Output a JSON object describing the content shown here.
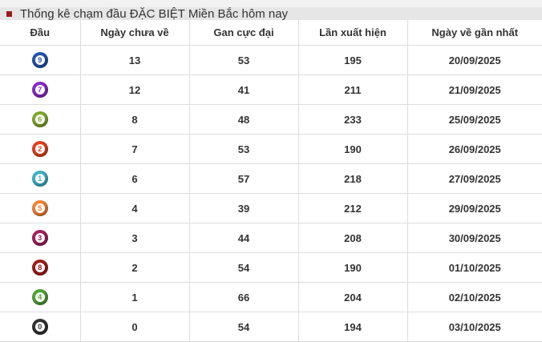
{
  "title": "Thống kê chạm đầu ĐẶC BIỆT Miền Bắc hôm nay",
  "headers": [
    "Đầu",
    "Ngày chưa về",
    "Gan cực đại",
    "Lần xuất hiện",
    "Ngày về gần nhất"
  ],
  "rows": [
    {
      "dau": "9",
      "color": "#2456a8",
      "ngay_chua_ve": "13",
      "gan_cuc_dai": "53",
      "lan_xuat_hien": "195",
      "ngay_ve_gan_nhat": "20/09/2025"
    },
    {
      "dau": "7",
      "color": "#8a2bc2",
      "ngay_chua_ve": "12",
      "gan_cuc_dai": "41",
      "lan_xuat_hien": "211",
      "ngay_ve_gan_nhat": "21/09/2025"
    },
    {
      "dau": "6",
      "color": "#7fa82c",
      "ngay_chua_ve": "8",
      "gan_cuc_dai": "48",
      "lan_xuat_hien": "233",
      "ngay_ve_gan_nhat": "25/09/2025"
    },
    {
      "dau": "2",
      "color": "#e2401f",
      "ngay_chua_ve": "7",
      "gan_cuc_dai": "53",
      "lan_xuat_hien": "190",
      "ngay_ve_gan_nhat": "26/09/2025"
    },
    {
      "dau": "1",
      "color": "#3fb2c4",
      "ngay_chua_ve": "6",
      "gan_cuc_dai": "57",
      "lan_xuat_hien": "218",
      "ngay_ve_gan_nhat": "27/09/2025"
    },
    {
      "dau": "5",
      "color": "#f28232",
      "ngay_chua_ve": "4",
      "gan_cuc_dai": "39",
      "lan_xuat_hien": "212",
      "ngay_ve_gan_nhat": "29/09/2025"
    },
    {
      "dau": "3",
      "color": "#a3215c",
      "ngay_chua_ve": "3",
      "gan_cuc_dai": "44",
      "lan_xuat_hien": "208",
      "ngay_ve_gan_nhat": "30/09/2025"
    },
    {
      "dau": "8",
      "color": "#a31a1a",
      "ngay_chua_ve": "2",
      "gan_cuc_dai": "54",
      "lan_xuat_hien": "190",
      "ngay_ve_gan_nhat": "01/10/2025"
    },
    {
      "dau": "4",
      "color": "#4fa332",
      "ngay_chua_ve": "1",
      "gan_cuc_dai": "66",
      "lan_xuat_hien": "204",
      "ngay_ve_gan_nhat": "02/10/2025"
    },
    {
      "dau": "0",
      "color": "#333333",
      "ngay_chua_ve": "0",
      "gan_cuc_dai": "54",
      "lan_xuat_hien": "194",
      "ngay_ve_gan_nhat": "03/10/2025"
    }
  ]
}
